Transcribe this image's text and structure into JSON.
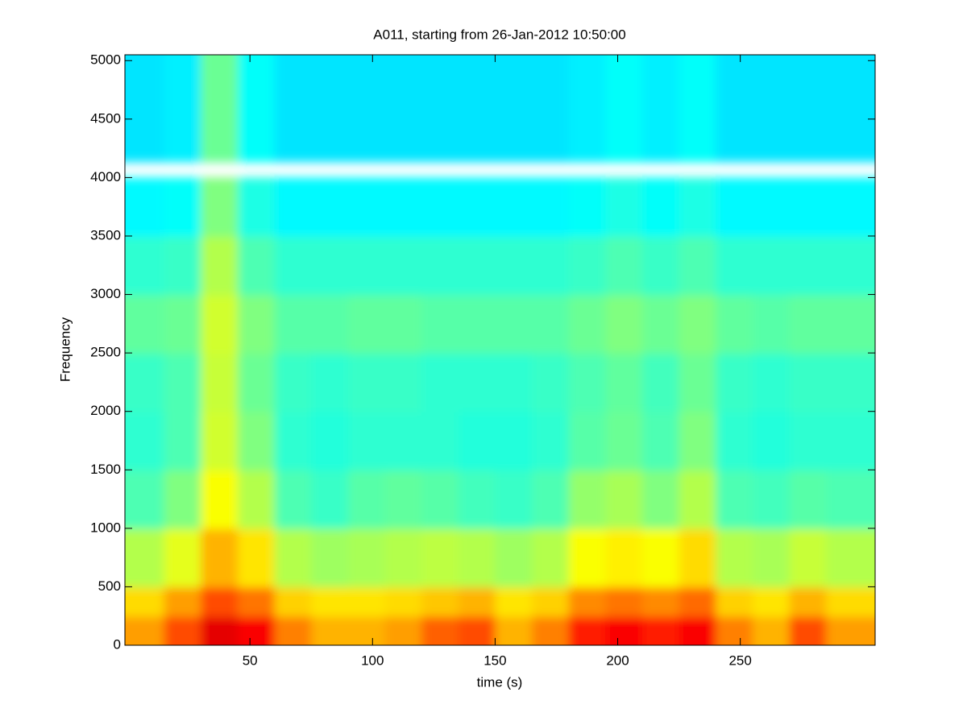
{
  "chart_data": {
    "type": "spectrogram",
    "title": "A011, starting from 26-Jan-2012 10:50:00",
    "xlabel": "time (s)",
    "ylabel": "Frequency",
    "xlim": [
      -1,
      305
    ],
    "ylim": [
      0,
      5050
    ],
    "xticks": [
      50,
      100,
      150,
      200,
      250
    ],
    "yticks": [
      0,
      500,
      1000,
      1500,
      2000,
      2500,
      3000,
      3500,
      4000,
      4500,
      5000
    ],
    "colormap": "jet",
    "clim": [
      0,
      1
    ],
    "x_bins": [
      -1,
      15,
      30,
      45,
      60,
      75,
      90,
      105,
      120,
      135,
      150,
      165,
      180,
      195,
      210,
      225,
      240,
      255,
      270,
      285,
      305
    ],
    "y_bins": [
      0,
      250,
      500,
      1000,
      1500,
      2000,
      2500,
      3000,
      3500,
      4000,
      5050
    ],
    "values": [
      [
        0.72,
        0.8,
        0.9,
        0.88,
        0.75,
        0.7,
        0.7,
        0.72,
        0.78,
        0.8,
        0.7,
        0.75,
        0.85,
        0.88,
        0.85,
        0.88,
        0.75,
        0.7,
        0.8,
        0.72
      ],
      [
        0.66,
        0.72,
        0.8,
        0.76,
        0.67,
        0.65,
        0.65,
        0.66,
        0.68,
        0.7,
        0.65,
        0.67,
        0.74,
        0.76,
        0.74,
        0.77,
        0.67,
        0.65,
        0.7,
        0.66
      ],
      [
        0.55,
        0.6,
        0.7,
        0.65,
        0.55,
        0.53,
        0.54,
        0.55,
        0.56,
        0.55,
        0.53,
        0.55,
        0.62,
        0.64,
        0.62,
        0.66,
        0.55,
        0.54,
        0.57,
        0.55
      ],
      [
        0.45,
        0.5,
        0.62,
        0.55,
        0.45,
        0.43,
        0.46,
        0.47,
        0.46,
        0.44,
        0.43,
        0.45,
        0.52,
        0.54,
        0.5,
        0.55,
        0.45,
        0.44,
        0.46,
        0.45
      ],
      [
        0.42,
        0.45,
        0.58,
        0.5,
        0.42,
        0.41,
        0.42,
        0.42,
        0.42,
        0.41,
        0.41,
        0.42,
        0.46,
        0.48,
        0.45,
        0.5,
        0.42,
        0.41,
        0.42,
        0.42
      ],
      [
        0.43,
        0.45,
        0.57,
        0.48,
        0.43,
        0.42,
        0.43,
        0.43,
        0.42,
        0.42,
        0.42,
        0.43,
        0.45,
        0.47,
        0.44,
        0.48,
        0.43,
        0.42,
        0.43,
        0.43
      ],
      [
        0.47,
        0.48,
        0.58,
        0.5,
        0.46,
        0.46,
        0.47,
        0.47,
        0.46,
        0.46,
        0.46,
        0.46,
        0.48,
        0.5,
        0.48,
        0.5,
        0.47,
        0.46,
        0.47,
        0.47
      ],
      [
        0.42,
        0.43,
        0.55,
        0.45,
        0.42,
        0.42,
        0.42,
        0.42,
        0.42,
        0.42,
        0.42,
        0.42,
        0.43,
        0.45,
        0.43,
        0.45,
        0.42,
        0.42,
        0.42,
        0.42
      ],
      [
        0.37,
        0.38,
        0.5,
        0.4,
        0.37,
        0.37,
        0.37,
        0.37,
        0.37,
        0.37,
        0.37,
        0.37,
        0.38,
        0.4,
        0.38,
        0.4,
        0.37,
        0.37,
        0.37,
        0.37
      ],
      [
        0.35,
        0.36,
        0.48,
        0.38,
        0.35,
        0.35,
        0.35,
        0.35,
        0.35,
        0.35,
        0.35,
        0.35,
        0.36,
        0.38,
        0.36,
        0.38,
        0.35,
        0.35,
        0.35,
        0.35
      ]
    ]
  }
}
